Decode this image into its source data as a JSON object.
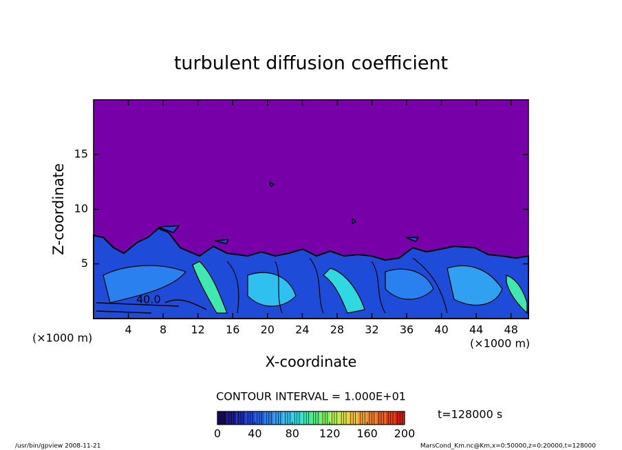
{
  "chart_data": {
    "type": "contour",
    "title": "turbulent diffusion coefficient",
    "x_label": "X-coordinate",
    "y_label": "Z-coordinate",
    "x_unit": "(×1000 m)",
    "y_unit": "(×1000 m)",
    "xlim": [
      0,
      50
    ],
    "xticks": [
      4,
      8,
      12,
      16,
      20,
      24,
      28,
      32,
      36,
      40,
      44,
      48
    ],
    "ylim": [
      0,
      20
    ],
    "yticks": [
      5,
      10,
      15
    ],
    "contour_interval_label": "CONTOUR INTERVAL = 1.000E+01",
    "time_label": "t=128000 s",
    "contour_label": "40.0",
    "colorbar": {
      "lim": [
        0,
        200
      ],
      "ticks": [
        0,
        40,
        80,
        120,
        160,
        200
      ],
      "colors": [
        "#1a0a5a",
        "#1a1a8a",
        "#1a2ab0",
        "#1e44d0",
        "#2060e0",
        "#2a80ee",
        "#30a0f0",
        "#30c0f0",
        "#30d8e0",
        "#40e8b0",
        "#50f080",
        "#80f060",
        "#b0f050",
        "#d8e040",
        "#f0c040",
        "#f0a030",
        "#f08028",
        "#e86020",
        "#e04018",
        "#d02010"
      ]
    },
    "footer_left": "/usr/bin/gpview   2008-11-21",
    "footer_right": "MarsCond_Km.nc@Km,x=0:50000,z=0:20000,t=128000"
  }
}
